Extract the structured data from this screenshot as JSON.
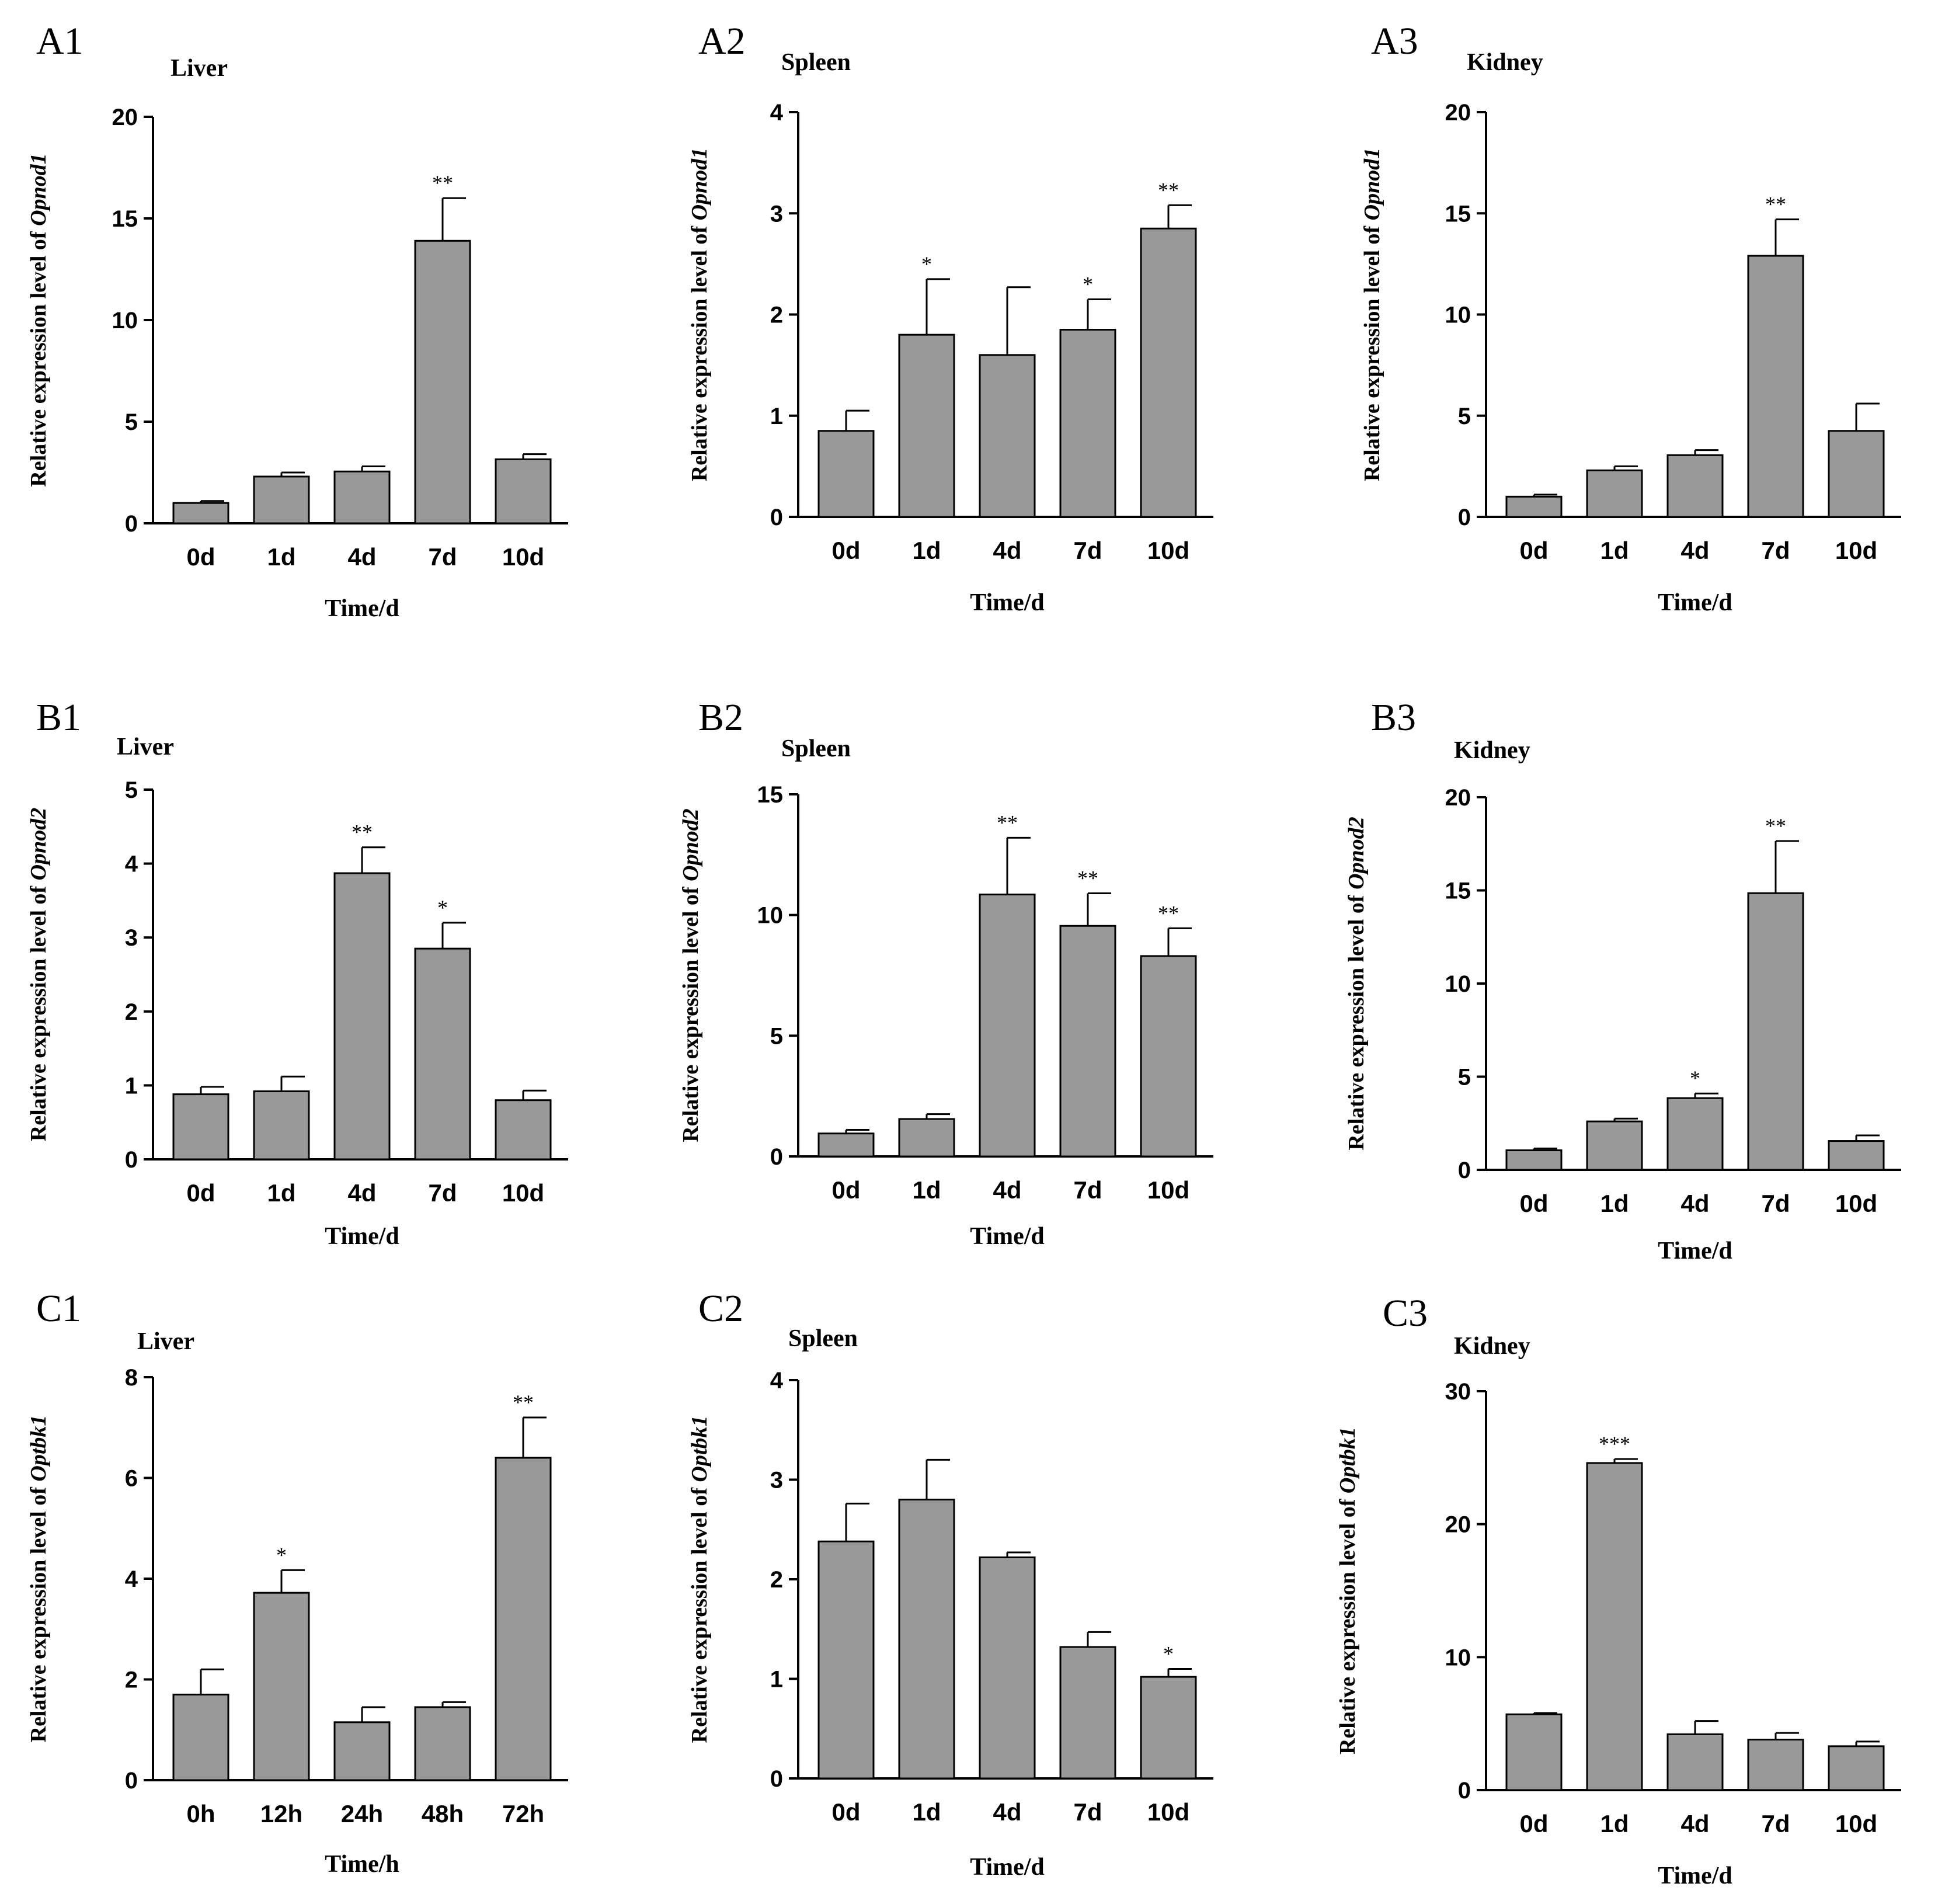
{
  "colors": {
    "bar_fill": "#999999",
    "bar_stroke": "#000000",
    "axis": "#000000"
  },
  "ylabel_prefix": "Relative expression level of ",
  "chart_data": [
    {
      "panel": "A1",
      "organ": "Liver",
      "type": "bar",
      "gene": "Opnod1",
      "categories": [
        "0d",
        "1d",
        "4d",
        "7d",
        "10d"
      ],
      "values": [
        1.0,
        2.3,
        2.55,
        13.9,
        3.15
      ],
      "errors": [
        0.1,
        0.2,
        0.25,
        2.1,
        0.25
      ],
      "significance": [
        "",
        "",
        "",
        "**",
        ""
      ],
      "xlabel": "Time/d",
      "ylim": [
        0,
        20
      ],
      "yticks": [
        0,
        5,
        10,
        15,
        20
      ]
    },
    {
      "panel": "A2",
      "organ": "Spleen",
      "type": "bar",
      "gene": "Opnod1",
      "categories": [
        "0d",
        "1d",
        "4d",
        "7d",
        "10d"
      ],
      "values": [
        0.85,
        1.8,
        1.6,
        1.85,
        2.85
      ],
      "errors": [
        0.2,
        0.55,
        0.67,
        0.3,
        0.23
      ],
      "significance": [
        "",
        "*",
        "",
        "*",
        "**"
      ],
      "xlabel": "Time/d",
      "ylim": [
        0,
        4
      ],
      "yticks": [
        0,
        1,
        2,
        3,
        4
      ]
    },
    {
      "panel": "A3",
      "organ": "Kidney",
      "type": "bar",
      "gene": "Opnod1",
      "categories": [
        "0d",
        "1d",
        "4d",
        "7d",
        "10d"
      ],
      "values": [
        1.0,
        2.3,
        3.05,
        12.9,
        4.25
      ],
      "errors": [
        0.1,
        0.2,
        0.25,
        1.8,
        1.35
      ],
      "significance": [
        "",
        "",
        "",
        "**",
        ""
      ],
      "xlabel": "Time/d",
      "ylim": [
        0,
        20
      ],
      "yticks": [
        0,
        5,
        10,
        15,
        20
      ]
    },
    {
      "panel": "B1",
      "organ": "Liver",
      "type": "bar",
      "gene": "Opnod2",
      "categories": [
        "0d",
        "1d",
        "4d",
        "7d",
        "10d"
      ],
      "values": [
        0.88,
        0.92,
        3.87,
        2.85,
        0.8
      ],
      "errors": [
        0.1,
        0.2,
        0.35,
        0.35,
        0.13
      ],
      "significance": [
        "",
        "",
        "**",
        "*",
        ""
      ],
      "xlabel": "Time/d",
      "ylim": [
        0,
        5
      ],
      "yticks": [
        0,
        1,
        2,
        3,
        4,
        5
      ]
    },
    {
      "panel": "B2",
      "organ": "Spleen",
      "type": "bar",
      "gene": "Opnod2",
      "categories": [
        "0d",
        "1d",
        "4d",
        "7d",
        "10d"
      ],
      "values": [
        0.95,
        1.55,
        10.85,
        9.55,
        8.3
      ],
      "errors": [
        0.15,
        0.2,
        2.35,
        1.35,
        1.15
      ],
      "significance": [
        "",
        "",
        "**",
        "**",
        "**"
      ],
      "xlabel": "Time/d",
      "ylim": [
        0,
        15
      ],
      "yticks": [
        0,
        5,
        10,
        15
      ]
    },
    {
      "panel": "B3",
      "organ": "Kidney",
      "type": "bar",
      "gene": "Opnod2",
      "categories": [
        "0d",
        "1d",
        "4d",
        "7d",
        "10d"
      ],
      "values": [
        1.05,
        2.6,
        3.85,
        14.85,
        1.55
      ],
      "errors": [
        0.1,
        0.15,
        0.25,
        2.8,
        0.3
      ],
      "significance": [
        "",
        "",
        "*",
        "**",
        ""
      ],
      "xlabel": "Time/d",
      "ylim": [
        0,
        20
      ],
      "yticks": [
        0,
        5,
        10,
        15,
        20
      ]
    },
    {
      "panel": "C1",
      "organ": "Liver",
      "type": "bar",
      "gene": "Optbk1",
      "categories": [
        "0h",
        "12h",
        "24h",
        "48h",
        "72h"
      ],
      "values": [
        1.7,
        3.72,
        1.15,
        1.45,
        6.4
      ],
      "errors": [
        0.5,
        0.45,
        0.3,
        0.1,
        0.8
      ],
      "significance": [
        "",
        "*",
        "",
        "",
        "**"
      ],
      "xlabel": "Time/h",
      "ylim": [
        0,
        8
      ],
      "yticks": [
        0,
        2,
        4,
        6,
        8
      ]
    },
    {
      "panel": "C2",
      "organ": "Spleen",
      "type": "bar",
      "gene": "Optbk1",
      "categories": [
        "0d",
        "1d",
        "4d",
        "7d",
        "10d"
      ],
      "values": [
        2.38,
        2.8,
        2.22,
        1.32,
        1.02
      ],
      "errors": [
        0.38,
        0.4,
        0.05,
        0.15,
        0.08
      ],
      "significance": [
        "",
        "",
        "",
        "",
        "*"
      ],
      "xlabel": "Time/d",
      "ylim": [
        0,
        4
      ],
      "yticks": [
        0,
        1,
        2,
        3,
        4
      ]
    },
    {
      "panel": "C3",
      "organ": "Kidney",
      "type": "bar",
      "gene": "Optbk1",
      "categories": [
        "0d",
        "1d",
        "4d",
        "7d",
        "10d"
      ],
      "values": [
        5.7,
        24.6,
        4.2,
        3.8,
        3.3
      ],
      "errors": [
        0.1,
        0.3,
        1.0,
        0.5,
        0.35
      ],
      "significance": [
        "",
        "***",
        "",
        "",
        ""
      ],
      "xlabel": "Time/d",
      "ylim": [
        0,
        30
      ],
      "yticks": [
        0,
        10,
        20,
        30
      ]
    }
  ]
}
